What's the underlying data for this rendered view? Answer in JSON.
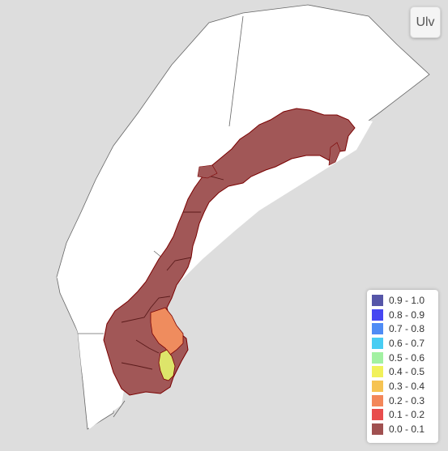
{
  "layer_button": {
    "label": "Ulv"
  },
  "map": {
    "background": "#dddddd",
    "sea_fill": "#ffffff",
    "land_fill": "#a15757",
    "region_fill": {
      "orange": "#ef8c5e",
      "yellow": "#dde56a"
    },
    "boundary_color": "#7a0000"
  },
  "legend": {
    "items": [
      {
        "label": "0.9 - 1.0",
        "color": "#5656a8"
      },
      {
        "label": "0.8 - 0.9",
        "color": "#4646f2"
      },
      {
        "label": "0.7 - 0.8",
        "color": "#4f8cf5"
      },
      {
        "label": "0.6 - 0.7",
        "color": "#48cdf3"
      },
      {
        "label": "0.5 - 0.6",
        "color": "#a2f1a2"
      },
      {
        "label": "0.4 - 0.5",
        "color": "#f1f15a"
      },
      {
        "label": "0.3 - 0.4",
        "color": "#f6c352"
      },
      {
        "label": "0.2 - 0.3",
        "color": "#f3875a"
      },
      {
        "label": "0.1 - 0.2",
        "color": "#e84d4d"
      },
      {
        "label": "0.0 - 0.1",
        "color": "#a05050"
      }
    ]
  }
}
